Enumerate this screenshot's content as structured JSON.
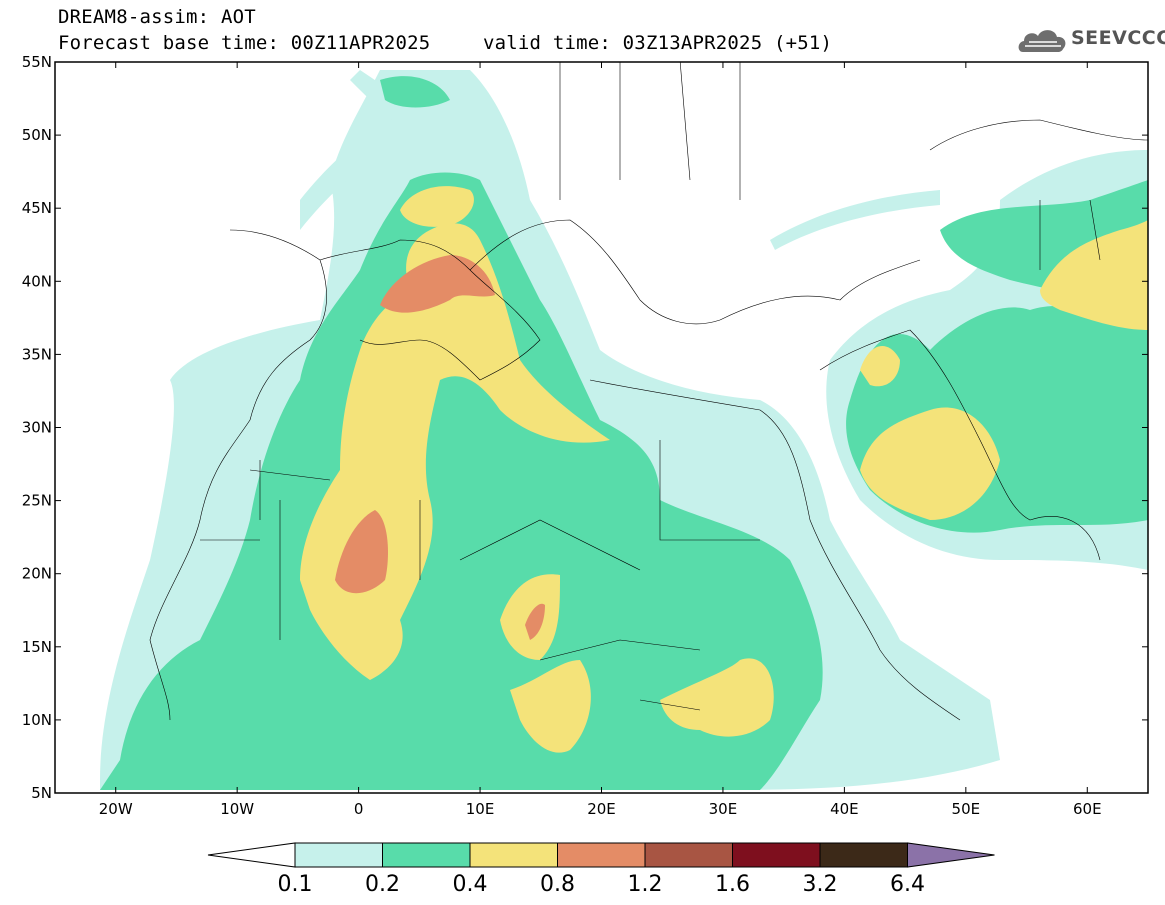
{
  "header": {
    "line1": "DREAM8-assim: AOT",
    "base_time": "Forecast base time: 00Z11APR2025",
    "valid_time": "valid time: 03Z13APR2025 (+51)"
  },
  "logo": {
    "text": "SEEVCCC",
    "icon": "cloud-icon"
  },
  "map": {
    "lon_ticks": [
      "20W",
      "10W",
      "0",
      "10E",
      "20E",
      "30E",
      "40E",
      "50E",
      "60E"
    ],
    "lat_ticks": [
      "55N",
      "50N",
      "45N",
      "40N",
      "35N",
      "30N",
      "25N",
      "20N",
      "15N",
      "10N",
      "5N"
    ],
    "extent": {
      "lon": [
        -25,
        65
      ],
      "lat": [
        5,
        55
      ]
    },
    "field": "AOT"
  },
  "colorbar": {
    "labels": [
      "0.1",
      "0.2",
      "0.4",
      "0.8",
      "1.2",
      "1.6",
      "3.2",
      "6.4"
    ],
    "colors": [
      "#c6f1eb",
      "#58dcaa",
      "#f4e37a",
      "#e48c66",
      "#a85543",
      "#7e0f1e",
      "#3c2918",
      "#8b72a8"
    ]
  }
}
